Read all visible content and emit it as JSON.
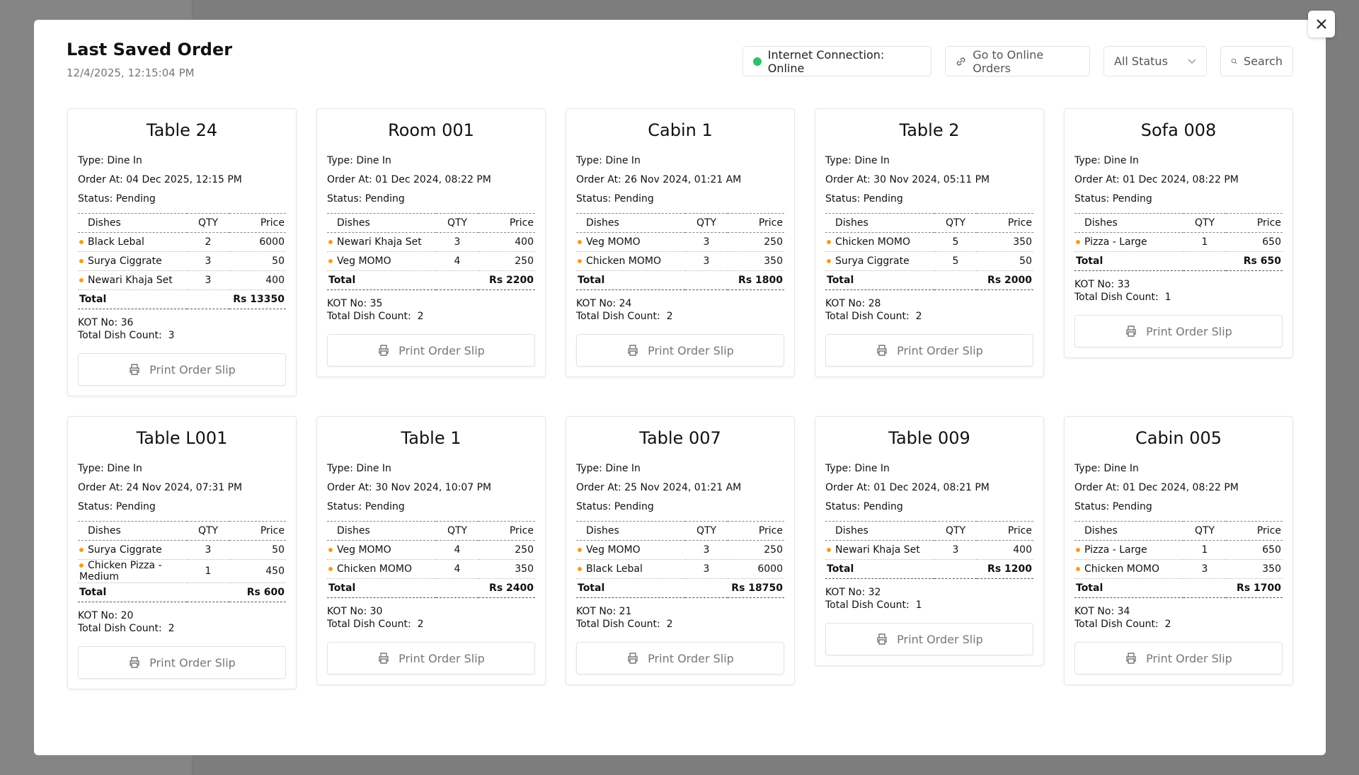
{
  "header": {
    "title": "Last Saved Order",
    "date": "12/4/2025, 12:15:04 PM",
    "connection": "Internet Connection: Online",
    "online_orders": "Go to Online Orders",
    "status_filter": "All Status",
    "search": "Search"
  },
  "labels": {
    "dishes": "Dishes",
    "qty": "QTY",
    "price": "Price",
    "total": "Total",
    "print": "Print Order Slip"
  },
  "orders": [
    {
      "name": "Table 24",
      "type": "Type: Dine In",
      "order_at": "Order At: 04 Dec 2025, 12:15 PM",
      "status": "Status: Pending",
      "items": [
        [
          "Black Lebal",
          2,
          6000
        ],
        [
          "Surya Ciggrate",
          3,
          50
        ],
        [
          "Newari Khaja Set",
          3,
          400
        ]
      ],
      "total": "Rs 13350",
      "kot": "KOT No: 36",
      "dish_count": "Total Dish Count:  3"
    },
    {
      "name": "Room 001",
      "type": "Type: Dine In",
      "order_at": "Order At: 01 Dec 2024, 08:22 PM",
      "status": "Status: Pending",
      "items": [
        [
          "Newari Khaja Set",
          3,
          400
        ],
        [
          "Veg MOMO",
          4,
          250
        ]
      ],
      "total": "Rs 2200",
      "kot": "KOT No: 35",
      "dish_count": "Total Dish Count:  2"
    },
    {
      "name": "Cabin 1",
      "type": "Type: Dine In",
      "order_at": "Order At: 26 Nov 2024, 01:21 AM",
      "status": "Status: Pending",
      "items": [
        [
          "Veg MOMO",
          3,
          250
        ],
        [
          "Chicken MOMO",
          3,
          350
        ]
      ],
      "total": "Rs 1800",
      "kot": "KOT No: 24",
      "dish_count": "Total Dish Count:  2"
    },
    {
      "name": "Table 2",
      "type": "Type: Dine In",
      "order_at": "Order At: 30 Nov 2024, 05:11 PM",
      "status": "Status: Pending",
      "items": [
        [
          "Chicken MOMO",
          5,
          350
        ],
        [
          "Surya Ciggrate",
          5,
          50
        ]
      ],
      "total": "Rs 2000",
      "kot": "KOT No: 28",
      "dish_count": "Total Dish Count:  2"
    },
    {
      "name": "Sofa 008",
      "type": "Type: Dine In",
      "order_at": "Order At: 01 Dec 2024, 08:22 PM",
      "status": "Status: Pending",
      "items": [
        [
          "Pizza - Large",
          1,
          650
        ]
      ],
      "total": "Rs 650",
      "kot": "KOT No: 33",
      "dish_count": "Total Dish Count:  1"
    },
    {
      "name": "Table L001",
      "type": "Type: Dine In",
      "order_at": "Order At: 24 Nov 2024, 07:31 PM",
      "status": "Status: Pending",
      "items": [
        [
          "Surya Ciggrate",
          3,
          50
        ],
        [
          "Chicken Pizza - Medium",
          1,
          450
        ]
      ],
      "total": "Rs 600",
      "kot": "KOT No: 20",
      "dish_count": "Total Dish Count:  2"
    },
    {
      "name": "Table 1",
      "type": "Type: Dine In",
      "order_at": "Order At: 30 Nov 2024, 10:07 PM",
      "status": "Status: Pending",
      "items": [
        [
          "Veg MOMO",
          4,
          250
        ],
        [
          "Chicken MOMO",
          4,
          350
        ]
      ],
      "total": "Rs 2400",
      "kot": "KOT No: 30",
      "dish_count": "Total Dish Count:  2"
    },
    {
      "name": "Table 007",
      "type": "Type: Dine In",
      "order_at": "Order At: 25 Nov 2024, 01:21 AM",
      "status": "Status: Pending",
      "items": [
        [
          "Veg MOMO",
          3,
          250
        ],
        [
          "Black Lebal",
          3,
          6000
        ]
      ],
      "total": "Rs 18750",
      "kot": "KOT No: 21",
      "dish_count": "Total Dish Count:  2"
    },
    {
      "name": "Table 009",
      "type": "Type: Dine In",
      "order_at": "Order At: 01 Dec 2024, 08:21 PM",
      "status": "Status: Pending",
      "items": [
        [
          "Newari Khaja Set",
          3,
          400
        ]
      ],
      "total": "Rs 1200",
      "kot": "KOT No: 32",
      "dish_count": "Total Dish Count:  1"
    },
    {
      "name": "Cabin 005",
      "type": "Type: Dine In",
      "order_at": "Order At: 01 Dec 2024, 08:22 PM",
      "status": "Status: Pending",
      "items": [
        [
          "Pizza - Large",
          1,
          650
        ],
        [
          "Chicken MOMO",
          3,
          350
        ]
      ],
      "total": "Rs 1700",
      "kot": "KOT No: 34",
      "dish_count": "Total Dish Count:  2"
    }
  ]
}
